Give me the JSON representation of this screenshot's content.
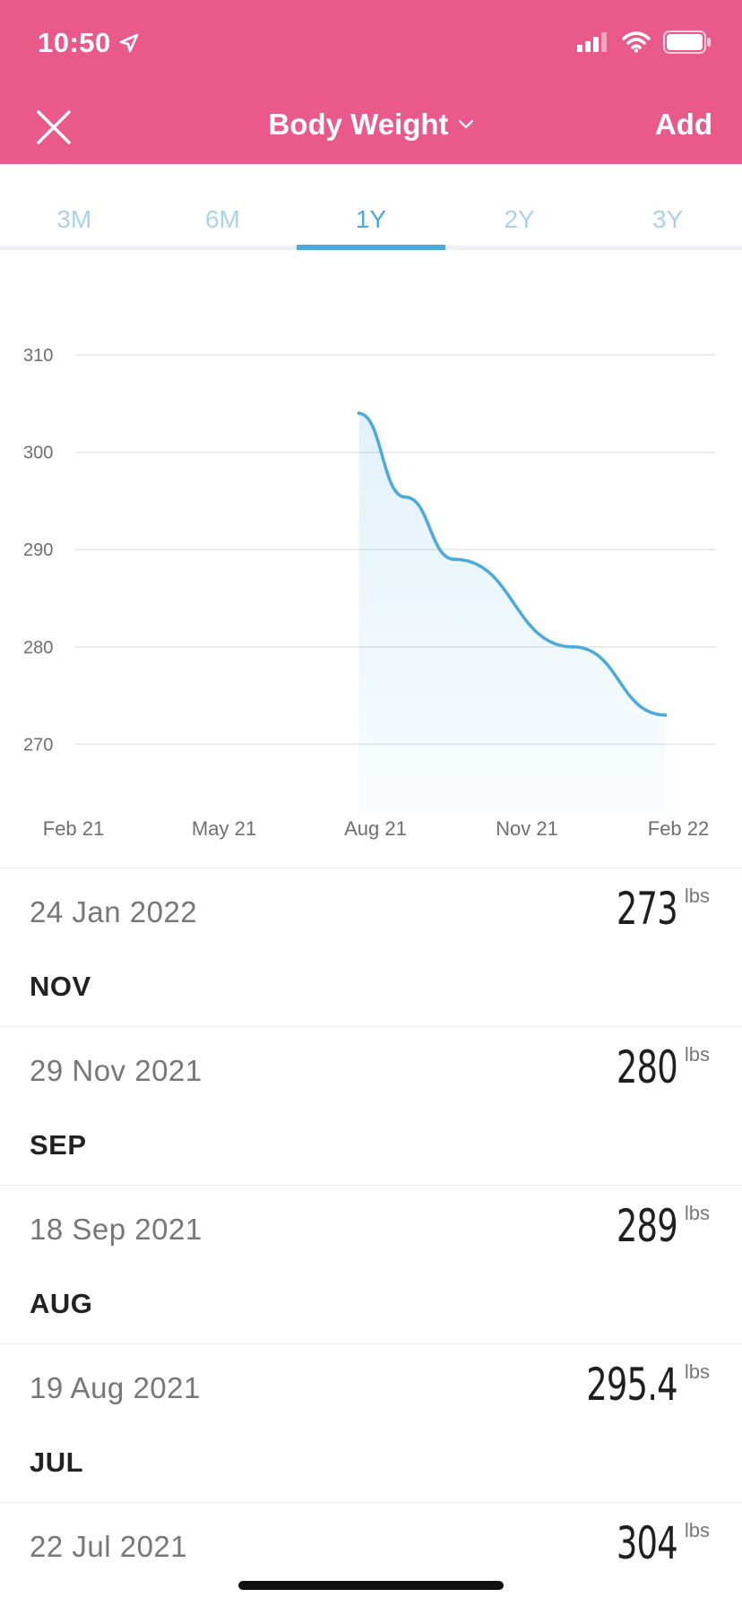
{
  "status_bar": {
    "time": "10:50"
  },
  "nav": {
    "title": "Body Weight",
    "add_label": "Add"
  },
  "tabs": [
    {
      "label": "3M",
      "active": false
    },
    {
      "label": "6M",
      "active": false
    },
    {
      "label": "1Y",
      "active": true
    },
    {
      "label": "2Y",
      "active": false
    },
    {
      "label": "3Y",
      "active": false
    }
  ],
  "chart_data": {
    "type": "area",
    "y_ticks": [
      "310",
      "300",
      "290",
      "280",
      "270"
    ],
    "x_ticks": [
      "Feb 21",
      "May 21",
      "Aug 21",
      "Nov 21",
      "Feb 22"
    ],
    "ylim": [
      263,
      311
    ],
    "series": [
      {
        "points": [
          {
            "x": "2021-07-22",
            "y": 304
          },
          {
            "x": "2021-08-19",
            "y": 295.4
          },
          {
            "x": "2021-09-18",
            "y": 289
          },
          {
            "x": "2021-11-29",
            "y": 280
          },
          {
            "x": "2022-01-24",
            "y": 273
          }
        ]
      }
    ],
    "line_color": "#4aaadc",
    "grid": true
  },
  "entries": [
    {
      "date": "24 Jan 2022",
      "value": "273",
      "unit": "lbs"
    },
    {
      "month": "NOV",
      "date": "29 Nov 2021",
      "value": "280",
      "unit": "lbs"
    },
    {
      "month": "SEP",
      "date": "18 Sep 2021",
      "value": "289",
      "unit": "lbs"
    },
    {
      "month": "AUG",
      "date": "19 Aug 2021",
      "value": "295.4",
      "unit": "lbs"
    },
    {
      "month": "JUL",
      "date": "22 Jul 2021",
      "value": "304",
      "unit": "lbs"
    }
  ],
  "colors": {
    "header": "#e95a8b",
    "accent": "#4aaadc"
  }
}
